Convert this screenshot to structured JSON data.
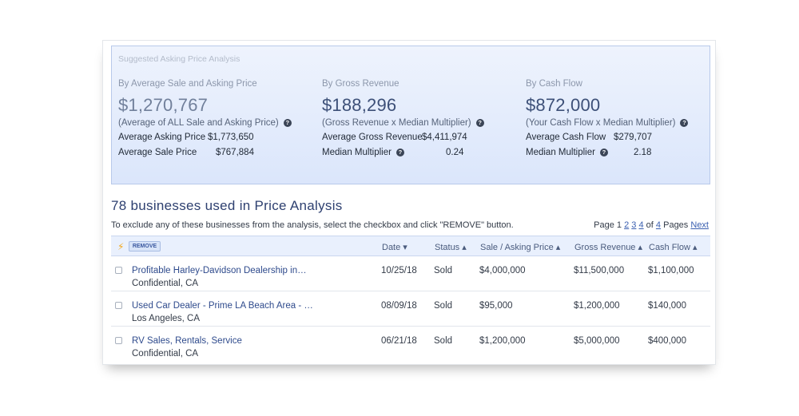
{
  "panel": {
    "title": "Suggested Asking Price Analysis",
    "columns": [
      {
        "label": "By Average Sale and Asking Price",
        "value": "$1,270,767",
        "note": "(Average of ALL Sale and Asking Price)",
        "rows": [
          {
            "key": "Average Asking Price",
            "value": "$1,773,650"
          },
          {
            "key": "Average Sale Price",
            "value": "$767,884"
          }
        ]
      },
      {
        "label": "By Gross Revenue",
        "value": "$188,296",
        "note": "(Gross Revenue x Median Multiplier)",
        "rows": [
          {
            "key": "Average Gross Revenue",
            "value": "$4,411,974"
          },
          {
            "key": "Median Multiplier",
            "value": "0.24"
          }
        ]
      },
      {
        "label": "By Cash Flow",
        "value": "$872,000",
        "note": "(Your Cash Flow x Median Multiplier)",
        "rows": [
          {
            "key": "Average Cash Flow",
            "value": "$279,707"
          },
          {
            "key": "Median Multiplier",
            "value": "2.18"
          }
        ]
      }
    ]
  },
  "section_title": "78 businesses used in Price Analysis",
  "instructions": "To exclude any of these businesses from the analysis, select the checkbox and click \"REMOVE\" button.",
  "pager": {
    "prefix": "Page 1",
    "pages": [
      "2",
      "3",
      "4"
    ],
    "of_text": "of",
    "last": "4",
    "suffix": "Pages",
    "next": "Next"
  },
  "table": {
    "remove_label": "REMOVE",
    "headers": {
      "date": "Date ▾",
      "status": "Status ▴",
      "price": "Sale / Asking Price ▴",
      "revenue": "Gross Revenue ▴",
      "cashflow": "Cash Flow ▴"
    },
    "rows": [
      {
        "name": "Profitable Harley-Davidson Dealership in…",
        "location": "Confidential, CA",
        "date": "10/25/18",
        "status": "Sold",
        "price": "$4,000,000",
        "revenue": "$11,500,000",
        "cashflow": "$1,100,000"
      },
      {
        "name": "Used Car Dealer - Prime LA Beach Area - …",
        "location": "Los Angeles, CA",
        "date": "08/09/18",
        "status": "Sold",
        "price": "$95,000",
        "revenue": "$1,200,000",
        "cashflow": "$140,000"
      },
      {
        "name": "RV Sales, Rentals, Service",
        "location": "Confidential, CA",
        "date": "06/21/18",
        "status": "Sold",
        "price": "$1,200,000",
        "revenue": "$5,000,000",
        "cashflow": "$400,000"
      }
    ]
  }
}
